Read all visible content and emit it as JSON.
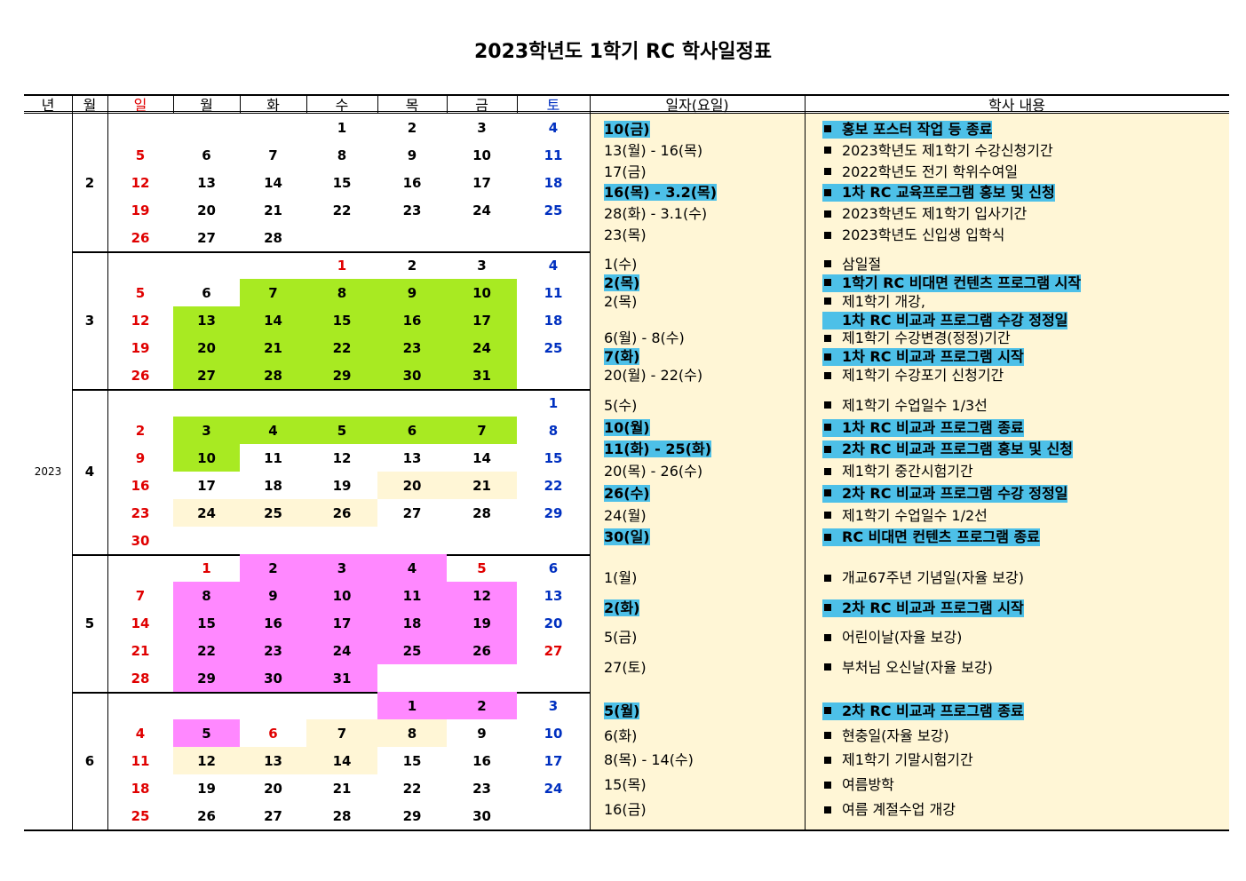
{
  "title": "2023학년도 1학기 RC 학사일정표",
  "header": [
    "년",
    "월",
    "일",
    "월",
    "화",
    "수",
    "목",
    "금",
    "토",
    "일자(요일)",
    "학사 내용"
  ],
  "year": "2023",
  "months": [
    {
      "month": 2,
      "weeks": [
        [
          null,
          null,
          null,
          1,
          2,
          3,
          4
        ],
        [
          5,
          6,
          7,
          8,
          9,
          10,
          11
        ],
        [
          12,
          13,
          14,
          15,
          16,
          17,
          18
        ],
        [
          19,
          20,
          21,
          22,
          23,
          24,
          25
        ],
        [
          26,
          27,
          28,
          null,
          null,
          null,
          null
        ]
      ],
      "events": [
        {
          "date": "10(금)",
          "text": "홍보 포스터 작업 등 종료",
          "highlight": true
        },
        {
          "date": "13(월) - 16(목)",
          "text": "2023학년도 제1학기 수강신청기간"
        },
        {
          "date": "17(금)",
          "text": "2022학년도 전기 학위수여일"
        },
        {
          "date": "16(목) - 3.2(목)",
          "text": "1차 RC 교육프로그램 홍보 및 신청",
          "highlight": true
        },
        {
          "date": "28(화) - 3.1(수)",
          "text": "2023학년도 제1학기 입사기간"
        },
        {
          "date": "23(목)",
          "text": "2023학년도 신입생 입학식"
        }
      ]
    },
    {
      "month": 3,
      "weeks": [
        [
          null,
          null,
          null,
          1,
          2,
          3,
          4
        ],
        [
          5,
          6,
          7,
          8,
          9,
          10,
          11
        ],
        [
          12,
          13,
          14,
          15,
          16,
          17,
          18
        ],
        [
          19,
          20,
          21,
          22,
          23,
          24,
          25
        ],
        [
          26,
          27,
          28,
          29,
          30,
          31,
          null
        ]
      ],
      "events": [
        {
          "date": "1(수)",
          "text": "삼일절"
        },
        {
          "date": "2(목)",
          "text": "1학기 RC 비대면 컨텐츠 프로그램 시작",
          "highlight": true
        },
        {
          "date": "2(목)",
          "text": "제1학기 개강,"
        },
        {
          "date": null,
          "text": "1차 RC 비교과 프로그램 수강 정정일",
          "highlight": true
        },
        {
          "date": "6(월) - 8(수)",
          "text": "제1학기 수강변경(정정)기간"
        },
        {
          "date": "7(화)",
          "text": "1차 RC 비교과 프로그램 시작",
          "highlight": true
        },
        {
          "date": "20(월) - 22(수)",
          "text": "제1학기 수강포기 신청기간"
        }
      ]
    },
    {
      "month": 4,
      "weeks": [
        [
          null,
          null,
          null,
          null,
          null,
          null,
          1
        ],
        [
          2,
          3,
          4,
          5,
          6,
          7,
          8
        ],
        [
          9,
          10,
          11,
          12,
          13,
          14,
          15
        ],
        [
          16,
          17,
          18,
          19,
          20,
          21,
          22
        ],
        [
          23,
          24,
          25,
          26,
          27,
          28,
          29
        ],
        [
          30,
          null,
          null,
          null,
          null,
          null,
          null
        ]
      ],
      "events": [
        {
          "date": "5(수)",
          "text": "제1학기 수업일수 1/3선"
        },
        {
          "date": "10(월)",
          "text": "1차 RC 비교과 프로그램 종료",
          "highlight": true
        },
        {
          "date": "11(화) - 25(화)",
          "text": "2차 RC 비교과 프로그램 홍보 및 신청",
          "highlight": true
        },
        {
          "date": "20(목) - 26(수)",
          "text": "제1학기 중간시험기간"
        },
        {
          "date": "26(수)",
          "text": "2차 RC 비교과 프로그램 수강 정정일",
          "highlight": true
        },
        {
          "date": "24(월)",
          "text": "제1학기 수업일수 1/2선"
        },
        {
          "date": "30(일)",
          "text": "RC 비대면 컨텐츠 프로그램 종료",
          "highlight": true
        }
      ]
    },
    {
      "month": 5,
      "weeks": [
        [
          null,
          1,
          2,
          3,
          4,
          5,
          6
        ],
        [
          7,
          8,
          9,
          10,
          11,
          12,
          13
        ],
        [
          14,
          15,
          16,
          17,
          18,
          19,
          20
        ],
        [
          21,
          22,
          23,
          24,
          25,
          26,
          27
        ],
        [
          28,
          29,
          30,
          31,
          null,
          null,
          null
        ]
      ],
      "events": [
        {
          "date": "1(월)",
          "text": "개교67주년 기념일(자율 보강)"
        },
        {
          "date": "2(화)",
          "text": "2차 RC 비교과 프로그램 시작",
          "highlight": true
        },
        {
          "date": "5(금)",
          "text": "어린이날(자율 보강)"
        },
        {
          "date": "27(토)",
          "text": "부처님 오신날(자율 보강)"
        }
      ]
    },
    {
      "month": 6,
      "weeks": [
        [
          null,
          null,
          null,
          null,
          1,
          2,
          3
        ],
        [
          4,
          5,
          6,
          7,
          8,
          9,
          10
        ],
        [
          11,
          12,
          13,
          14,
          15,
          16,
          17
        ],
        [
          18,
          19,
          20,
          21,
          22,
          23,
          24
        ],
        [
          25,
          26,
          27,
          28,
          29,
          30,
          null
        ]
      ],
      "events": [
        {
          "date": "5(월)",
          "text": "2차 RC 비교과 프로그램 종료",
          "highlight": true
        },
        {
          "date": "6(화)",
          "text": "현충일(자율 보강)"
        },
        {
          "date": "8(목) - 14(수)",
          "text": "제1학기 기말시험기간"
        },
        {
          "date": "15(목)",
          "text": "여름방학"
        },
        {
          "date": "16(금)",
          "text": "여름 계절수업 개강"
        }
      ]
    }
  ]
}
